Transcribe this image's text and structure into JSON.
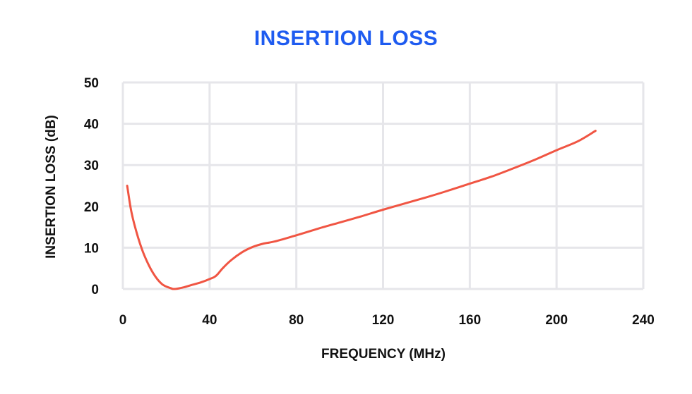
{
  "chart_data": {
    "type": "line",
    "title": "INSERTION LOSS",
    "xlabel": "FREQUENCY (MHz)",
    "ylabel": "INSERTION LOSS (dB)",
    "xlim": [
      0,
      240
    ],
    "ylim": [
      0,
      50
    ],
    "x_ticks": [
      "0",
      "40",
      "80",
      "120",
      "160",
      "200",
      "240"
    ],
    "y_ticks": [
      "0",
      "10",
      "20",
      "30",
      "40",
      "50"
    ],
    "grid": true,
    "legend": "none",
    "series": [
      {
        "x": [
          2,
          4,
          7,
          10,
          14,
          18,
          22,
          24,
          28,
          32,
          36,
          40,
          43,
          46,
          50,
          55,
          60,
          65,
          70,
          80,
          90,
          100,
          110,
          120,
          130,
          140,
          150,
          160,
          170,
          180,
          190,
          200,
          210,
          218
        ],
        "y": [
          25,
          18.5,
          12.5,
          8,
          3.8,
          1.2,
          0.2,
          0,
          0.4,
          1,
          1.6,
          2.4,
          3.2,
          5,
          7,
          8.9,
          10.2,
          11,
          11.5,
          13,
          14.6,
          16.1,
          17.6,
          19.2,
          20.7,
          22.2,
          23.8,
          25.5,
          27.2,
          29.2,
          31.3,
          33.6,
          35.8,
          38.3
        ]
      }
    ],
    "colors": {
      "title": "#1E5BF0",
      "line": "#F05543",
      "grid": "#E6E6EA",
      "text": "#111111"
    }
  }
}
